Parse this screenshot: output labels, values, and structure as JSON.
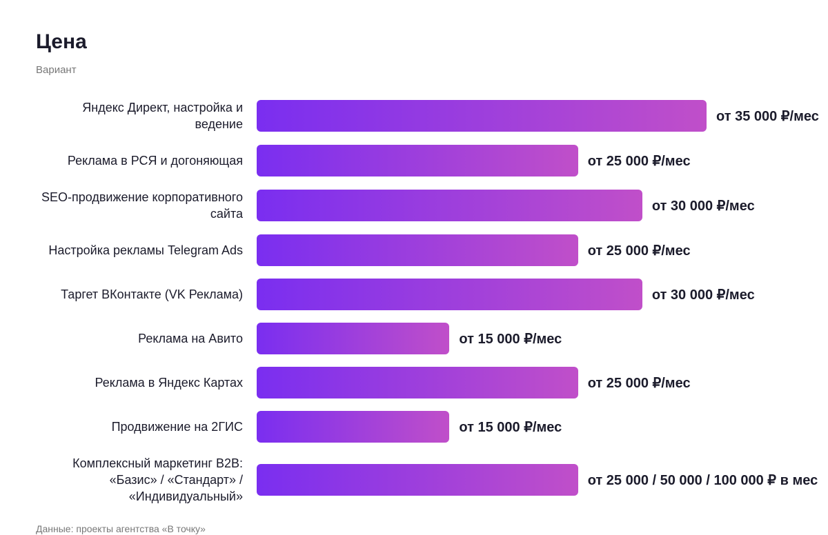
{
  "chart_data": {
    "type": "bar",
    "orientation": "horizontal",
    "title": "Цена",
    "subtitle": "Вариант",
    "source": "Данные: проекты агентства «В точку»",
    "categories": [
      "Яндекс Директ, настройка и ведение",
      "Реклама в РСЯ и догоняющая",
      "SEO-продвижение корпоративного сайта",
      "Настройка рекламы Telegram Ads",
      "Таргет ВКонтакте (VK Реклама)",
      "Реклама на Авито",
      "Реклама в Яндекс Картах",
      "Продвижение на 2ГИС",
      "Комплексный маркетинг B2B: «Базис» / «Стандарт» / «Индивидуальный»"
    ],
    "values": [
      35000,
      25000,
      30000,
      25000,
      30000,
      15000,
      25000,
      15000,
      25000
    ],
    "value_labels": [
      "от 35 000 ₽/мес",
      "от 25 000 ₽/мес",
      "от 30 000 ₽/мес",
      "от 25 000 ₽/мес",
      "от 30 000 ₽/мес",
      "от 15 000 ₽/мес",
      "от 25 000 ₽/мес",
      "от 15 000 ₽/мес",
      "от 25 000 / 50 000 / 100 000 ₽ в мес"
    ],
    "gradient": [
      "#7a2ef0",
      "#c04fc9"
    ]
  }
}
